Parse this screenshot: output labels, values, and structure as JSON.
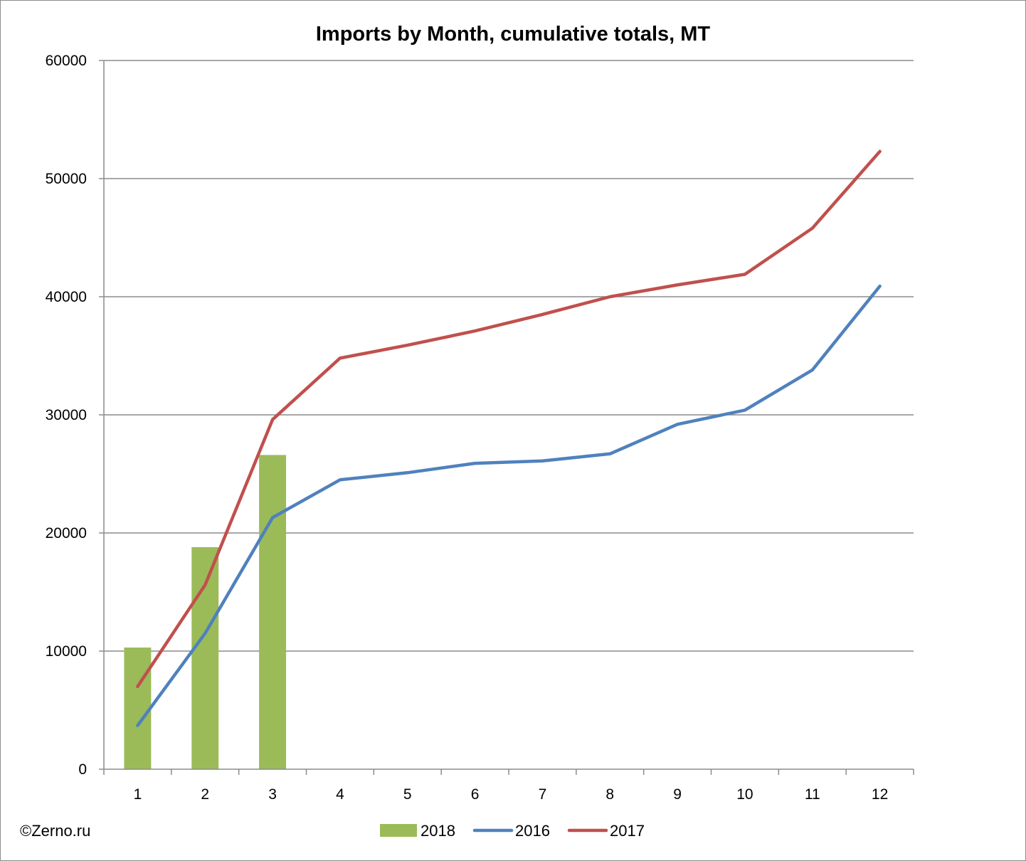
{
  "chart_data": {
    "type": "bar",
    "title": "Imports by Month, cumulative totals, MT",
    "xlabel": "",
    "ylabel": "",
    "categories": [
      "1",
      "2",
      "3",
      "4",
      "5",
      "6",
      "7",
      "8",
      "9",
      "10",
      "11",
      "12"
    ],
    "ylim": [
      0,
      60000
    ],
    "yticks": [
      "0",
      "10000",
      "20000",
      "30000",
      "40000",
      "50000",
      "60000"
    ],
    "grid": "horizontal",
    "legend_position": "bottom",
    "series": [
      {
        "name": "2018",
        "type": "bar",
        "color": "#9bbb59",
        "values": [
          10300,
          18800,
          26600,
          null,
          null,
          null,
          null,
          null,
          null,
          null,
          null,
          null
        ]
      },
      {
        "name": "2016",
        "type": "line",
        "color": "#4f81bd",
        "values": [
          3700,
          11500,
          21300,
          24500,
          25100,
          25900,
          26100,
          26700,
          29200,
          30400,
          33800,
          40900
        ]
      },
      {
        "name": "2017",
        "type": "line",
        "color": "#c0504d",
        "values": [
          7000,
          15600,
          29600,
          34800,
          35900,
          37100,
          38500,
          40000,
          41000,
          41900,
          45800,
          52300
        ]
      }
    ]
  },
  "credit": "©Zerno.ru"
}
